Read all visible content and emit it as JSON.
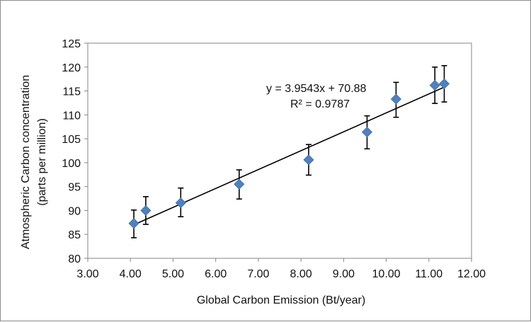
{
  "chart_data": {
    "type": "scatter",
    "title": "",
    "xlabel": "Global Carbon Emission (Bt/year)",
    "ylabel_line1": "Atmospheric Carbon concentration",
    "ylabel_line2": "(parts per million)",
    "xlim": [
      3.0,
      12.0
    ],
    "ylim": [
      80,
      125
    ],
    "x_ticks": [
      3,
      4,
      5,
      6,
      7,
      8,
      9,
      10,
      11,
      12
    ],
    "x_tick_labels": [
      "3.00",
      "4.00",
      "5.00",
      "6.00",
      "7.00",
      "8.00",
      "9.00",
      "10.00",
      "11.00",
      "12.00"
    ],
    "y_ticks": [
      80,
      85,
      90,
      95,
      100,
      105,
      110,
      115,
      120,
      125
    ],
    "y_tick_labels": [
      "80",
      "85",
      "90",
      "95",
      "100",
      "105",
      "110",
      "115",
      "120",
      "125"
    ],
    "grid": false,
    "legend": "none",
    "marker": "diamond",
    "marker_color": "#4F81BD",
    "series": [
      {
        "points": [
          {
            "x": 4.08,
            "y": 87.3,
            "err_low": 3.0,
            "err_high": 2.8
          },
          {
            "x": 4.36,
            "y": 90.0,
            "err_low": 2.9,
            "err_high": 2.9
          },
          {
            "x": 5.18,
            "y": 91.6,
            "err_low": 2.9,
            "err_high": 3.1
          },
          {
            "x": 6.55,
            "y": 95.5,
            "err_low": 3.1,
            "err_high": 3.0
          },
          {
            "x": 8.18,
            "y": 100.6,
            "err_low": 3.2,
            "err_high": 3.2
          },
          {
            "x": 9.55,
            "y": 106.4,
            "err_low": 3.5,
            "err_high": 3.4
          },
          {
            "x": 10.23,
            "y": 113.3,
            "err_low": 3.8,
            "err_high": 3.5
          },
          {
            "x": 11.14,
            "y": 116.2,
            "err_low": 3.8,
            "err_high": 3.8
          },
          {
            "x": 11.36,
            "y": 116.5,
            "err_low": 3.8,
            "err_high": 3.8
          }
        ]
      }
    ],
    "trendline": {
      "slope": 3.9543,
      "intercept": 70.88,
      "x_range": [
        4.08,
        11.36
      ],
      "color": "#000000"
    },
    "annotations": {
      "equation": "y = 3.9543x + 70.88",
      "r2_label": "R² = 0.9787"
    }
  }
}
